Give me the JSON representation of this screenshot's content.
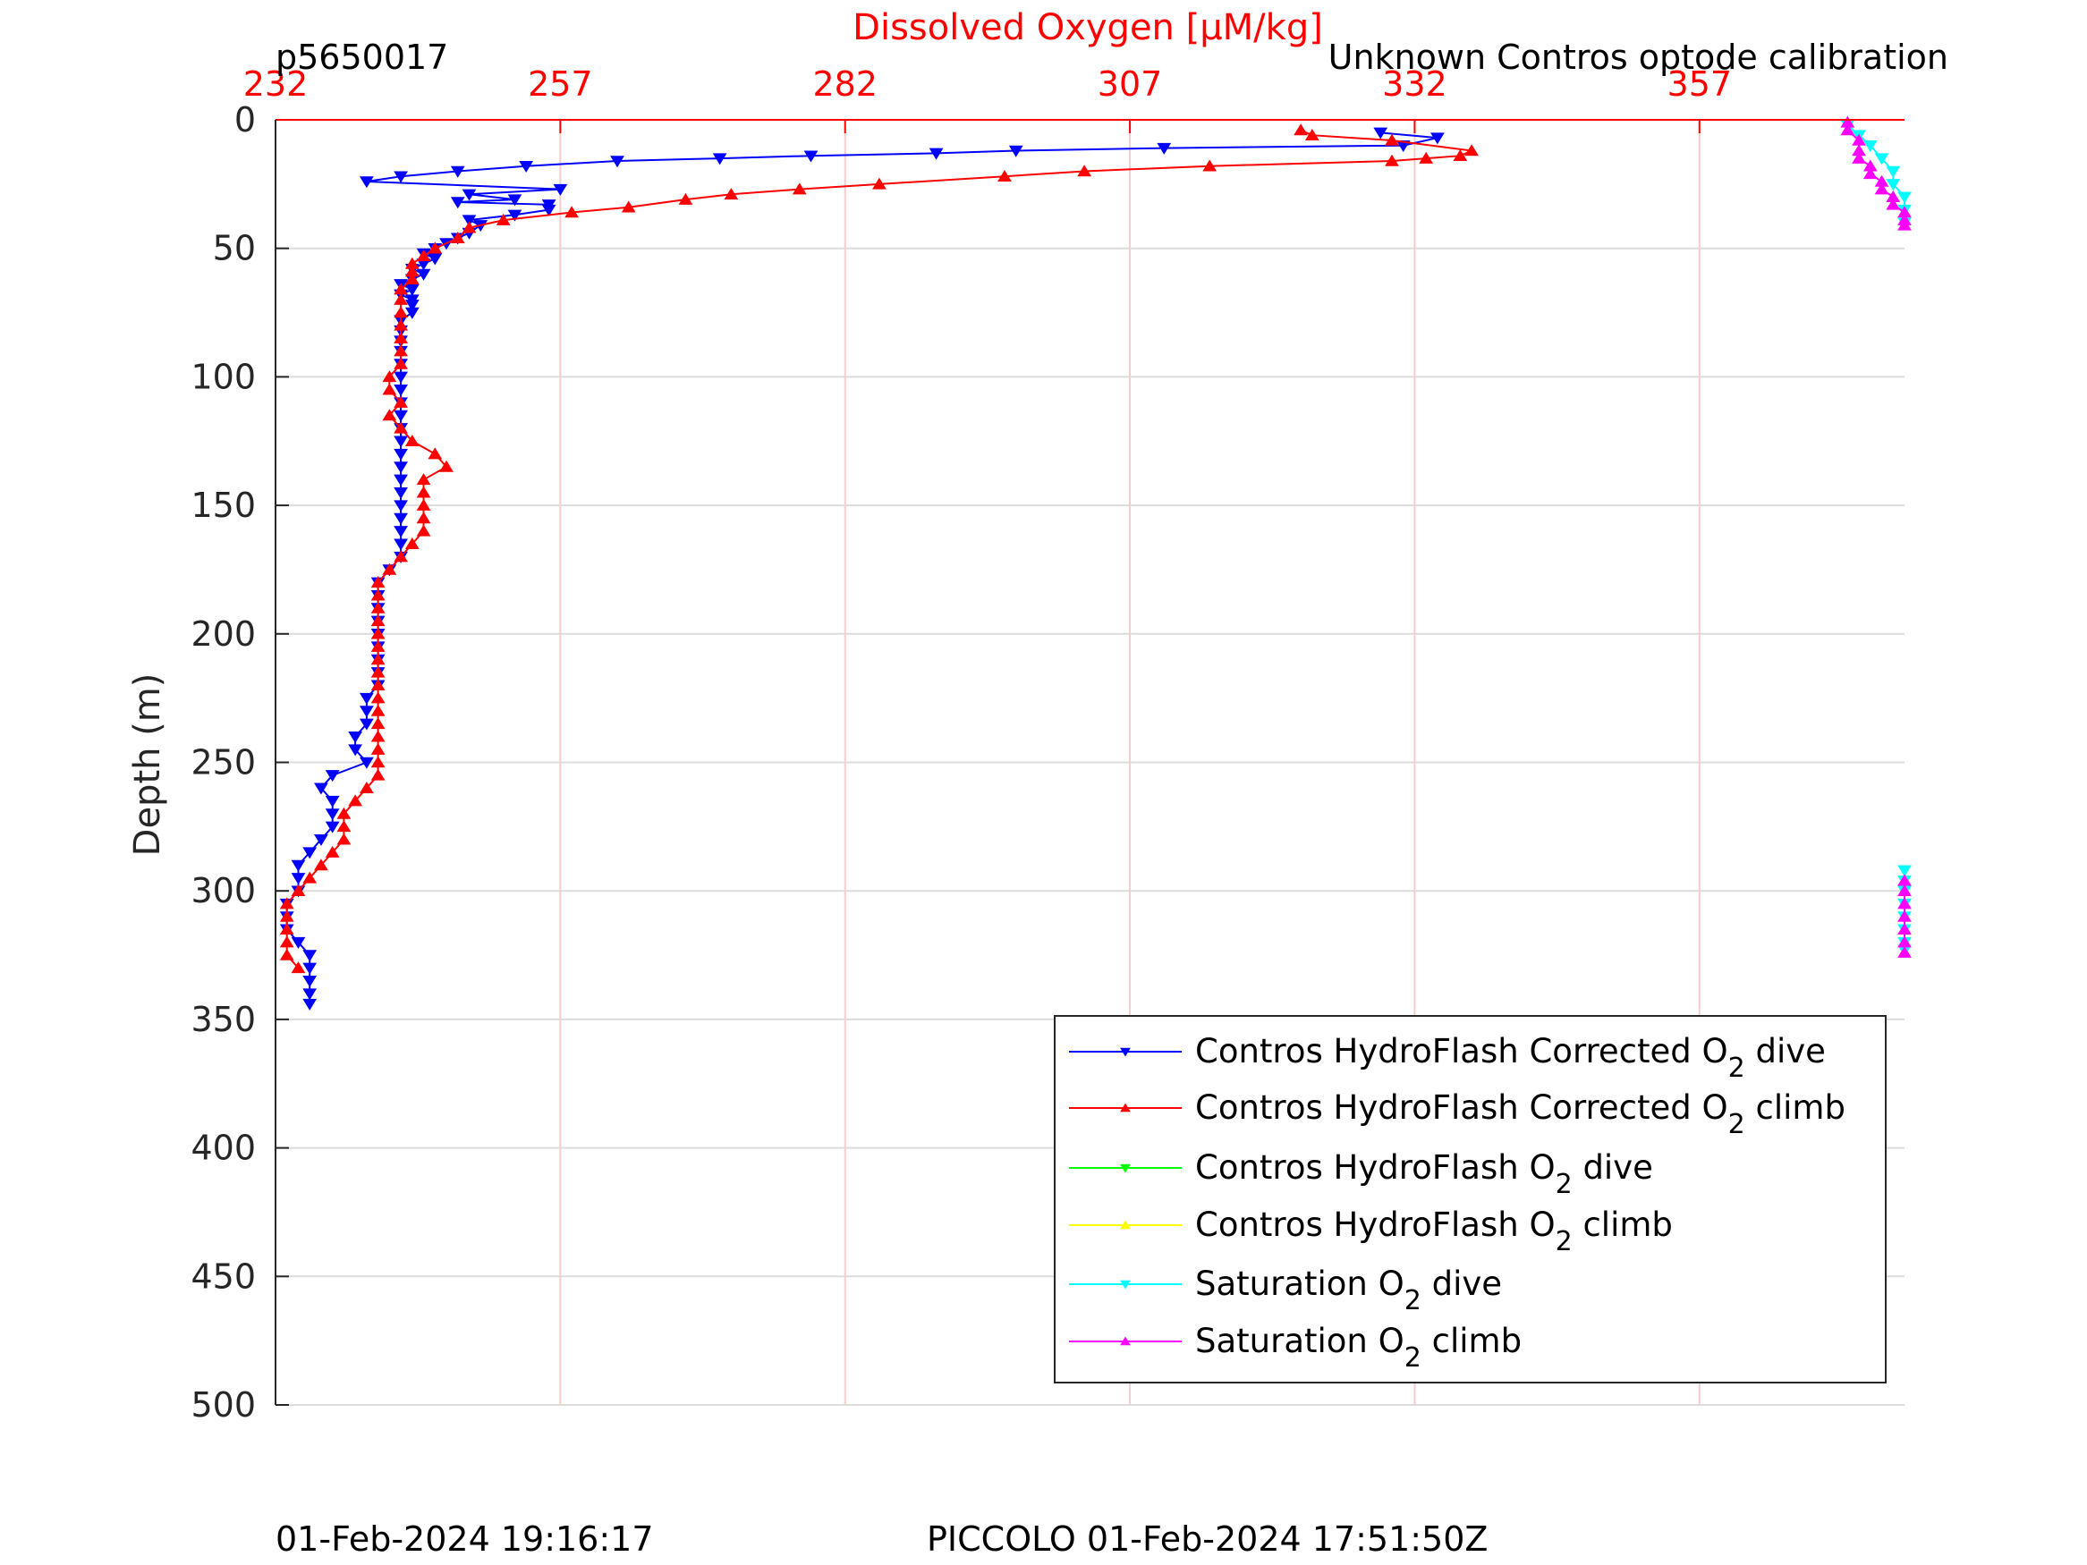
{
  "header": {
    "left_text": "p5650017",
    "right_text": "Unknown Contros optode calibration"
  },
  "footer": {
    "left_text": "01-Feb-2024 19:16:17",
    "center_text": "PICCOLO 01-Feb-2024 17:51:50Z"
  },
  "colors": {
    "axis_red": "#ff0000",
    "dive": "#0000ff",
    "climb": "#ff0000",
    "raw_dive": "#00ff00",
    "raw_climb": "#ffff00",
    "sat_dive": "#00ffff",
    "sat_climb": "#ff00ff"
  },
  "chart_data": {
    "type": "line",
    "title": "Dissolved Oxygen [μM/kg]",
    "xlabel": "Dissolved Oxygen [μM/kg]",
    "ylabel": "Depth (m)",
    "xlim": [
      232,
      375
    ],
    "ylim": [
      0,
      500
    ],
    "y_reversed": true,
    "x_ticks": [
      "232",
      "257",
      "282",
      "307",
      "332",
      "357"
    ],
    "y_ticks": [
      "0",
      "50",
      "100",
      "150",
      "200",
      "250",
      "300",
      "350",
      "400",
      "450",
      "500"
    ],
    "grid": true,
    "legend_position": "bottom-right",
    "legend": [
      {
        "pre": "Contros HydroFlash Corrected O",
        "sub": "2",
        "post": " dive",
        "series": "dive"
      },
      {
        "pre": "Contros HydroFlash Corrected O",
        "sub": "2",
        "post": " climb",
        "series": "climb"
      },
      {
        "pre": "Contros HydroFlash O",
        "sub": "2",
        "post": " dive",
        "series": "raw_dive"
      },
      {
        "pre": "Contros HydroFlash O",
        "sub": "2",
        "post": " climb",
        "series": "raw_climb"
      },
      {
        "pre": "Saturation O",
        "sub": "2",
        "post": " dive",
        "series": "sat_dive"
      },
      {
        "pre": "Saturation O",
        "sub": "2",
        "post": " climb",
        "series": "sat_climb"
      }
    ],
    "series": [
      {
        "name": "Contros HydroFlash Corrected O2 dive",
        "key": "dive",
        "marker": "down",
        "points": [
          [
            329,
            5
          ],
          [
            334,
            7
          ],
          [
            331,
            10
          ],
          [
            310,
            11
          ],
          [
            297,
            12
          ],
          [
            290,
            13
          ],
          [
            279,
            14
          ],
          [
            271,
            15
          ],
          [
            262,
            16
          ],
          [
            254,
            18
          ],
          [
            248,
            20
          ],
          [
            243,
            22
          ],
          [
            240,
            24
          ],
          [
            257,
            27
          ],
          [
            249,
            29
          ],
          [
            253,
            31
          ],
          [
            248,
            32
          ],
          [
            256,
            33
          ],
          [
            256,
            35
          ],
          [
            253,
            37
          ],
          [
            249,
            39
          ],
          [
            250,
            41
          ],
          [
            249,
            44
          ],
          [
            248,
            46
          ],
          [
            247,
            48
          ],
          [
            246,
            50
          ],
          [
            245,
            52
          ],
          [
            246,
            54
          ],
          [
            245,
            56
          ],
          [
            244,
            58
          ],
          [
            245,
            60
          ],
          [
            244,
            62
          ],
          [
            243,
            64
          ],
          [
            244,
            66
          ],
          [
            243,
            68
          ],
          [
            244,
            70
          ],
          [
            244,
            72
          ],
          [
            244,
            75
          ],
          [
            243,
            78
          ],
          [
            243,
            82
          ],
          [
            243,
            86
          ],
          [
            243,
            90
          ],
          [
            243,
            95
          ],
          [
            243,
            100
          ],
          [
            243,
            105
          ],
          [
            243,
            110
          ],
          [
            243,
            115
          ],
          [
            243,
            120
          ],
          [
            243,
            125
          ],
          [
            243,
            130
          ],
          [
            243,
            135
          ],
          [
            243,
            140
          ],
          [
            243,
            145
          ],
          [
            243,
            150
          ],
          [
            243,
            155
          ],
          [
            243,
            160
          ],
          [
            243,
            165
          ],
          [
            243,
            170
          ],
          [
            242,
            175
          ],
          [
            241,
            180
          ],
          [
            241,
            185
          ],
          [
            241,
            190
          ],
          [
            241,
            195
          ],
          [
            241,
            200
          ],
          [
            241,
            205
          ],
          [
            241,
            210
          ],
          [
            241,
            215
          ],
          [
            241,
            220
          ],
          [
            240,
            225
          ],
          [
            240,
            230
          ],
          [
            240,
            235
          ],
          [
            239,
            240
          ],
          [
            239,
            245
          ],
          [
            240,
            250
          ],
          [
            237,
            255
          ],
          [
            236,
            260
          ],
          [
            237,
            265
          ],
          [
            237,
            270
          ],
          [
            237,
            275
          ],
          [
            236,
            280
          ],
          [
            235,
            285
          ],
          [
            234,
            290
          ],
          [
            234,
            295
          ],
          [
            234,
            300
          ],
          [
            233,
            305
          ],
          [
            233,
            310
          ],
          [
            233,
            315
          ],
          [
            234,
            320
          ],
          [
            235,
            325
          ],
          [
            235,
            330
          ],
          [
            235,
            335
          ],
          [
            235,
            340
          ],
          [
            235,
            344
          ]
        ]
      },
      {
        "name": "Contros HydroFlash Corrected O2 climb",
        "key": "climb",
        "marker": "up",
        "points": [
          [
            322,
            4
          ],
          [
            323,
            6
          ],
          [
            330,
            8
          ],
          [
            337,
            12
          ],
          [
            336,
            14
          ],
          [
            333,
            15
          ],
          [
            330,
            16
          ],
          [
            314,
            18
          ],
          [
            303,
            20
          ],
          [
            296,
            22
          ],
          [
            285,
            25
          ],
          [
            278,
            27
          ],
          [
            272,
            29
          ],
          [
            268,
            31
          ],
          [
            263,
            34
          ],
          [
            258,
            36
          ],
          [
            252,
            39
          ],
          [
            249,
            42
          ],
          [
            248,
            46
          ],
          [
            246,
            50
          ],
          [
            245,
            53
          ],
          [
            244,
            56
          ],
          [
            244,
            59
          ],
          [
            244,
            62
          ],
          [
            243,
            66
          ],
          [
            243,
            70
          ],
          [
            243,
            75
          ],
          [
            243,
            80
          ],
          [
            243,
            85
          ],
          [
            243,
            90
          ],
          [
            243,
            95
          ],
          [
            242,
            100
          ],
          [
            242,
            105
          ],
          [
            243,
            110
          ],
          [
            242,
            115
          ],
          [
            243,
            120
          ],
          [
            244,
            125
          ],
          [
            246,
            130
          ],
          [
            247,
            135
          ],
          [
            245,
            140
          ],
          [
            245,
            145
          ],
          [
            245,
            150
          ],
          [
            245,
            155
          ],
          [
            245,
            160
          ],
          [
            244,
            165
          ],
          [
            243,
            170
          ],
          [
            242,
            175
          ],
          [
            241,
            180
          ],
          [
            241,
            185
          ],
          [
            241,
            190
          ],
          [
            241,
            195
          ],
          [
            241,
            200
          ],
          [
            241,
            205
          ],
          [
            241,
            210
          ],
          [
            241,
            215
          ],
          [
            241,
            220
          ],
          [
            241,
            225
          ],
          [
            241,
            230
          ],
          [
            241,
            235
          ],
          [
            241,
            240
          ],
          [
            241,
            245
          ],
          [
            241,
            250
          ],
          [
            241,
            255
          ],
          [
            240,
            260
          ],
          [
            239,
            265
          ],
          [
            238,
            270
          ],
          [
            238,
            275
          ],
          [
            238,
            280
          ],
          [
            237,
            285
          ],
          [
            236,
            290
          ],
          [
            235,
            295
          ],
          [
            234,
            300
          ],
          [
            233,
            305
          ],
          [
            233,
            310
          ],
          [
            233,
            315
          ],
          [
            233,
            320
          ],
          [
            233,
            325
          ],
          [
            234,
            330
          ]
        ]
      },
      {
        "name": "Contros HydroFlash O2 dive",
        "key": "raw_dive",
        "marker": "down",
        "points": []
      },
      {
        "name": "Contros HydroFlash O2 climb",
        "key": "raw_climb",
        "marker": "up",
        "points": []
      },
      {
        "name": "Saturation O2 dive",
        "key": "sat_dive",
        "marker": "down",
        "points": [
          [
            370,
            2
          ],
          [
            371,
            6
          ],
          [
            372,
            10
          ],
          [
            373,
            15
          ],
          [
            374,
            20
          ],
          [
            374,
            25
          ],
          [
            375,
            30
          ],
          [
            375,
            35
          ],
          [
            375,
            40
          ],
          [
            375,
            292
          ],
          [
            375,
            296
          ],
          [
            375,
            300
          ],
          [
            375,
            305
          ],
          [
            375,
            310
          ],
          [
            375,
            315
          ],
          [
            375,
            320
          ],
          [
            375,
            323
          ]
        ]
      },
      {
        "name": "Saturation O2 climb",
        "key": "sat_climb",
        "marker": "up",
        "points": [
          [
            370,
            1
          ],
          [
            370,
            4
          ],
          [
            371,
            8
          ],
          [
            371,
            12
          ],
          [
            371,
            15
          ],
          [
            372,
            18
          ],
          [
            372,
            21
          ],
          [
            373,
            24
          ],
          [
            373,
            27
          ],
          [
            374,
            30
          ],
          [
            374,
            33
          ],
          [
            375,
            36
          ],
          [
            375,
            39
          ],
          [
            375,
            41
          ],
          [
            375,
            296
          ],
          [
            375,
            300
          ],
          [
            375,
            305
          ],
          [
            375,
            310
          ],
          [
            375,
            315
          ],
          [
            375,
            320
          ],
          [
            375,
            324
          ]
        ]
      }
    ]
  }
}
